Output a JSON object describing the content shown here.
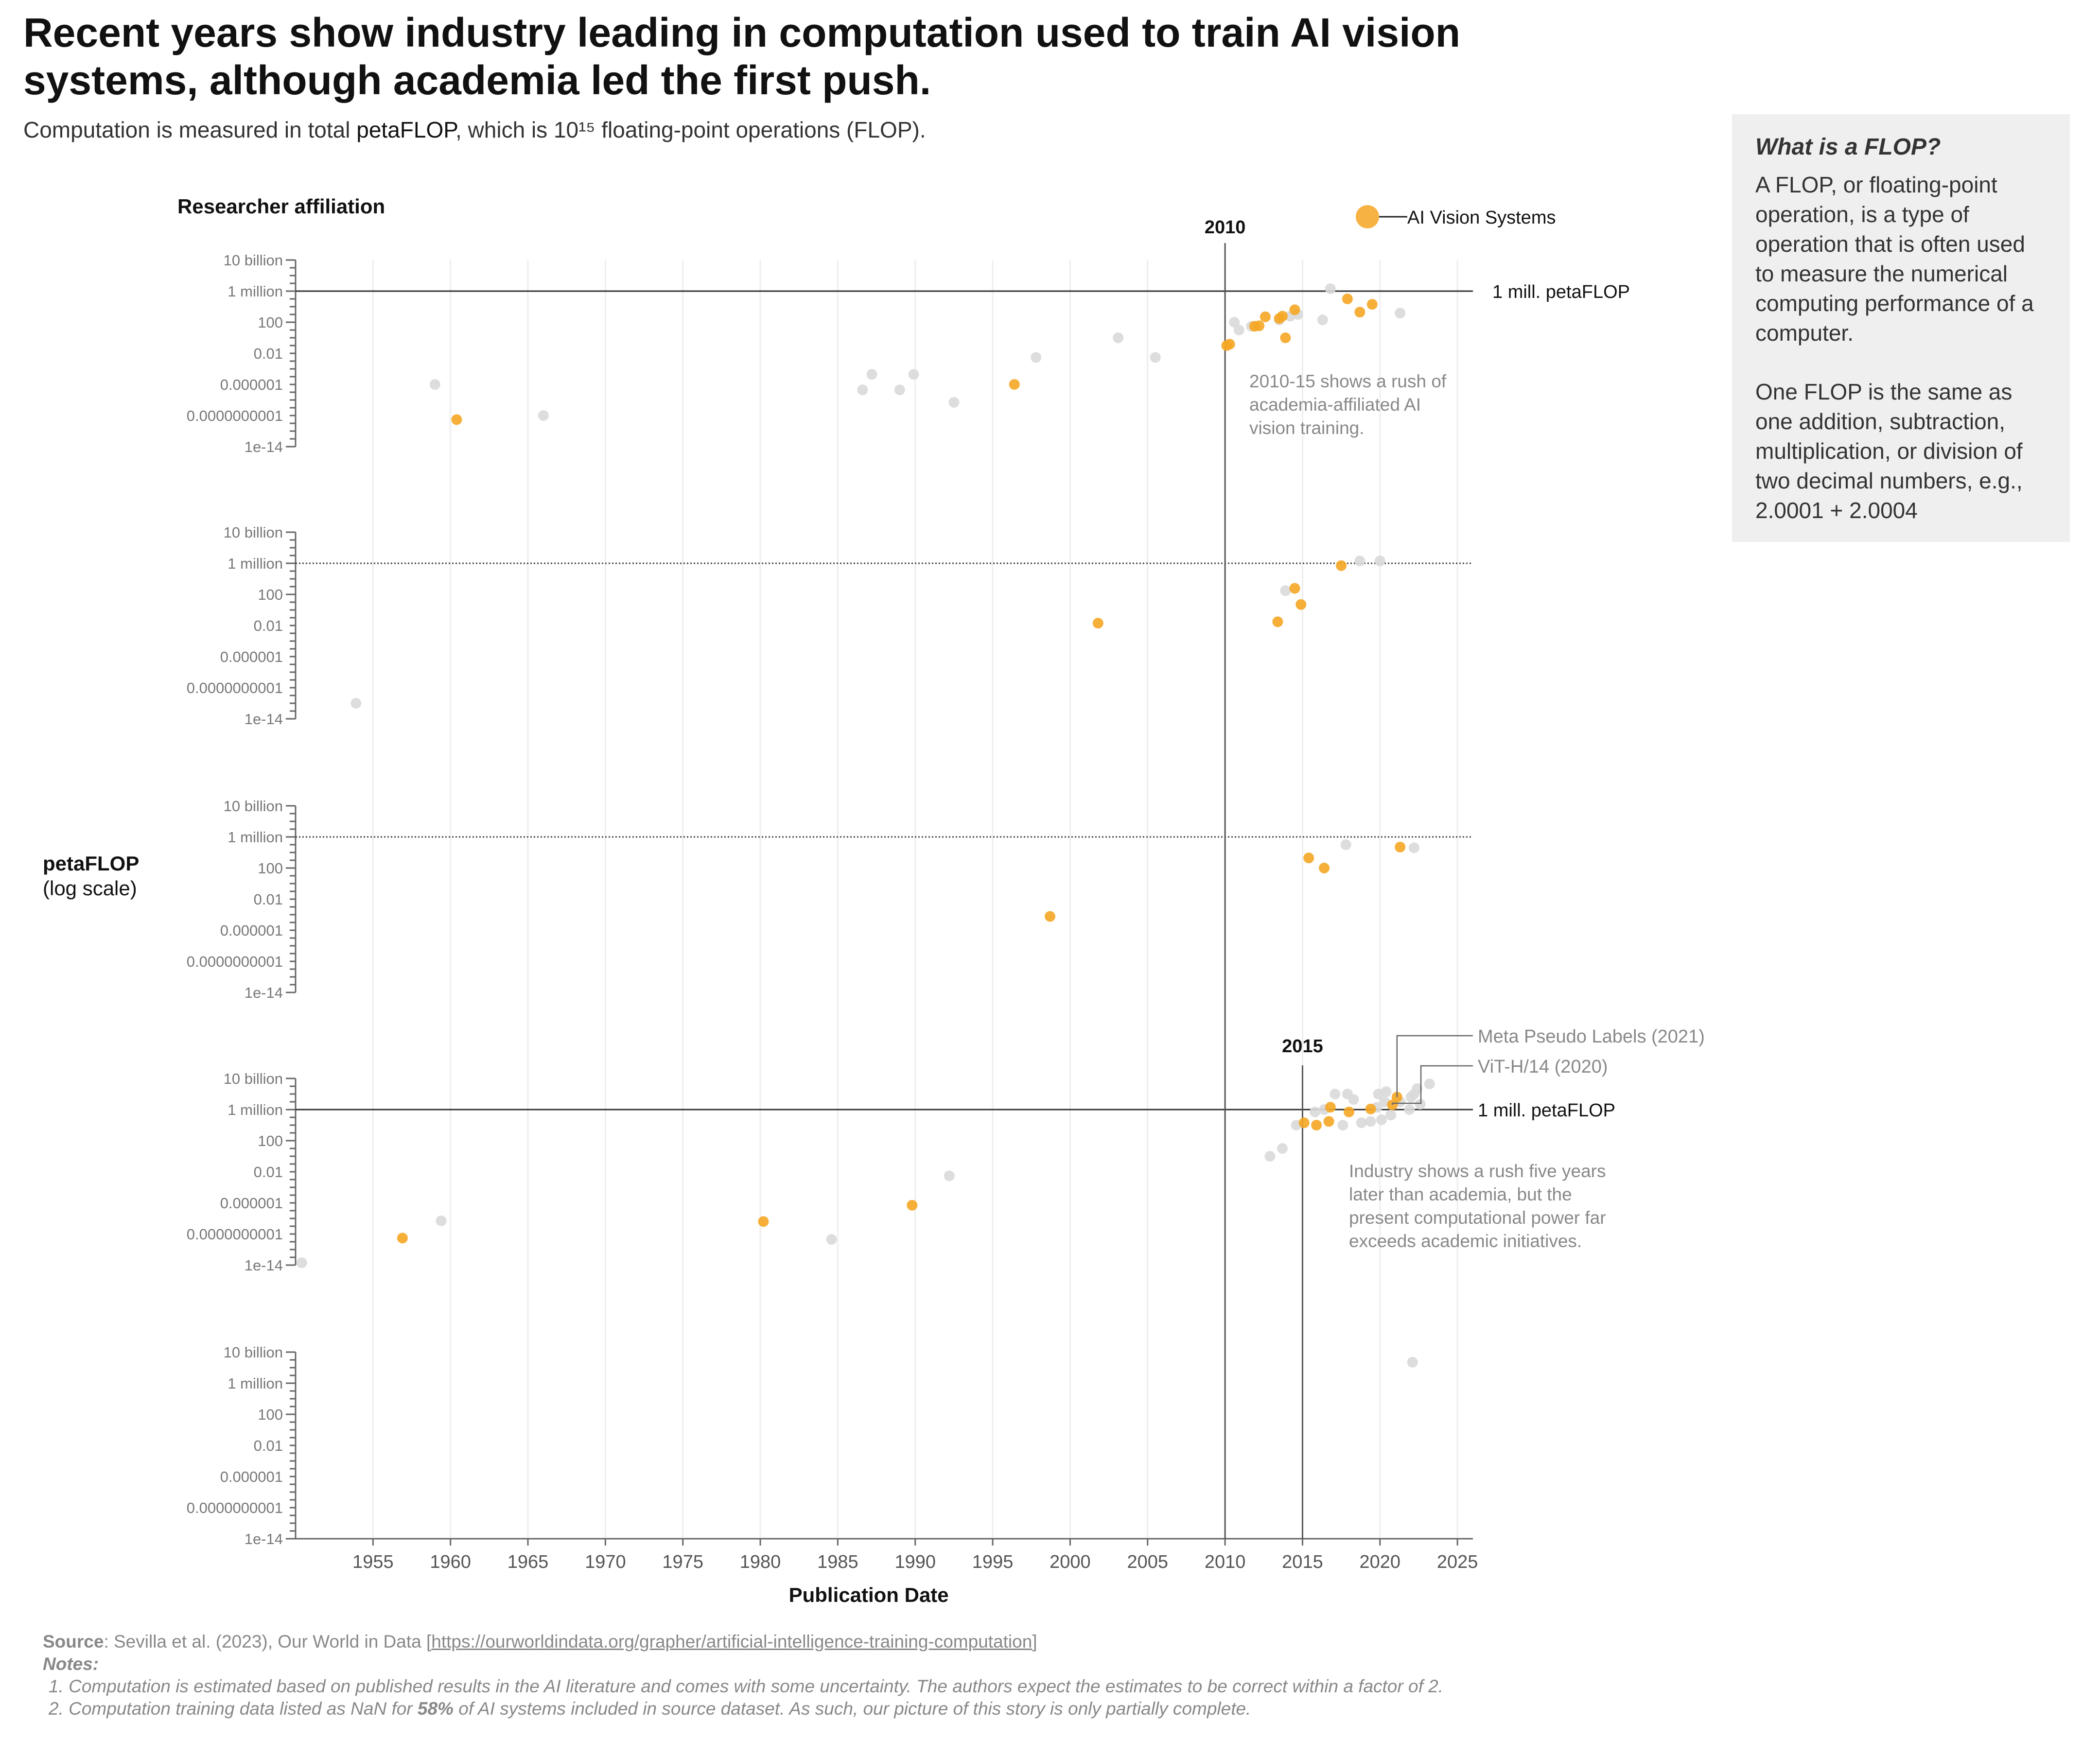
{
  "title": "Recent years show industry leading in computation used to train AI vision systems, although academia led the first push.",
  "subtitle": {
    "before": "Computation is measured in total ",
    "emphasis": "petaFLOP",
    "after": ", which is 10¹⁵ floating-point operations (FLOP)."
  },
  "sidebar": {
    "title": "What is a FLOP?",
    "paragraph1": "A FLOP, or floating-point operation, is a type of operation that is often used to measure the numerical computing performance of a computer.",
    "paragraph2": "One FLOP is the same as one addition, subtraction, multiplication, or division of two decimal numbers, e.g., 2.0001 + 2.0004"
  },
  "footer": {
    "source_label": "Source",
    "source_text": ": Sevilla et al. (2023), Our World in Data [",
    "source_link": "https://ourworldindata.org/grapher/artificial-intelligence-training-computation",
    "source_end": "]",
    "notes_label": "Notes:",
    "note1": "1. Computation is estimated based on published results in the AI literature and comes with some uncertainty. The authors expect the estimates to be correct within a factor of 2.",
    "note2_before": "2. Computation training data listed as NaN for ",
    "note2_bold": "58%",
    "note2_after": " of AI systems included in source dataset. As such, our picture of this story is only partially complete."
  },
  "colors": {
    "highlight": "#f5a623",
    "other": "#d9d9d9",
    "axis": "#666666",
    "grid": "#eeeeee",
    "annotation": "#888888"
  },
  "chart_data": {
    "type": "scatter",
    "y_scale": "log",
    "x_range": [
      1950,
      2026
    ],
    "y_range": [
      1e-14,
      10000000000.0
    ],
    "x_ticks": [
      1955,
      1960,
      1965,
      1970,
      1975,
      1980,
      1985,
      1990,
      1995,
      2000,
      2005,
      2010,
      2015,
      2020,
      2025
    ],
    "y_ticks": [
      {
        "value": 10000000000.0,
        "label": "10 billion"
      },
      {
        "value": 1000000.0,
        "label": "1 million"
      },
      {
        "value": 100,
        "label": "100"
      },
      {
        "value": 0.01,
        "label": "0.01"
      },
      {
        "value": 1e-06,
        "label": "0.000001"
      },
      {
        "value": 1e-10,
        "label": "0.0000000001"
      },
      {
        "value": 1e-14,
        "label": "1e-14"
      }
    ],
    "xlabel": "Publication Date",
    "ylabel": "petaFLOP",
    "ylabel_sub": "(log scale)",
    "facet_label": "Researcher affiliation",
    "legend": {
      "label": "AI Vision Systems",
      "position": "top-right"
    },
    "reference_lines": [
      {
        "value": 1000000.0,
        "label": "1 mill. petaFLOP"
      }
    ],
    "vertical_markers": [
      {
        "year": 2010,
        "label": "2010"
      },
      {
        "year": 2015,
        "label": "2015"
      }
    ],
    "annotations": [
      {
        "text": "2010-15 shows a rush of academia-affiliated AI vision training.",
        "panel": 0
      },
      {
        "text": "Industry shows a rush five years later than academia, but the present computational power far exceeds academic initiatives.",
        "panel": 3
      }
    ],
    "callouts": [
      {
        "label": "Meta Pseudo Labels (2021)",
        "x": 2021.1,
        "y": 40000000.0
      },
      {
        "label": "ViT-H/14 (2020)",
        "x": 2020.8,
        "y": 4000000.0
      }
    ],
    "panels": [
      {
        "vision": [
          [
            1960.4,
            3e-11
          ],
          [
            1996.4,
            1e-06
          ],
          [
            2010.1,
            0.1
          ],
          [
            2010.3,
            0.15
          ],
          [
            2011.9,
            30
          ],
          [
            2012.2,
            35
          ],
          [
            2012.6,
            500
          ],
          [
            2013.5,
            300
          ],
          [
            2013.7,
            600
          ],
          [
            2013.9,
            1
          ],
          [
            2014.5,
            4000
          ],
          [
            2017.9,
            100000
          ],
          [
            2018.7,
            2000
          ],
          [
            2019.5,
            20000
          ]
        ],
        "other": [
          [
            1959.0,
            1e-06
          ],
          [
            1966.0,
            1e-10
          ],
          [
            1986.6,
            2e-07
          ],
          [
            1987.2,
            2e-05
          ],
          [
            1989.0,
            2e-07
          ],
          [
            1989.9,
            2e-05
          ],
          [
            1992.5,
            5e-09
          ],
          [
            1997.8,
            0.003
          ],
          [
            2003.1,
            1
          ],
          [
            2005.5,
            0.003
          ],
          [
            2010.6,
            100
          ],
          [
            2010.9,
            10
          ],
          [
            2011.7,
            30
          ],
          [
            2013.5,
            200
          ],
          [
            2014.2,
            600
          ],
          [
            2014.7,
            1000
          ],
          [
            2016.3,
            200
          ],
          [
            2016.8,
            2000000
          ],
          [
            2021.3,
            1500
          ]
        ]
      },
      {
        "vision": [
          [
            2001.8,
            0.02
          ],
          [
            2013.4,
            0.03
          ],
          [
            2014.5,
            600
          ],
          [
            2014.9,
            5
          ],
          [
            2017.5,
            500000
          ]
        ],
        "other": [
          [
            1953.9,
            1e-12
          ],
          [
            2013.9,
            300
          ],
          [
            2018.7,
            2000000
          ],
          [
            2020.0,
            2000000
          ]
        ]
      },
      {
        "vision": [
          [
            1998.7,
            6e-05
          ],
          [
            2015.4,
            2000
          ],
          [
            2016.4,
            100
          ],
          [
            2021.3,
            50000
          ]
        ],
        "other": [
          [
            2017.8,
            100000
          ],
          [
            2022.2,
            40000
          ]
        ]
      },
      {
        "vision": [
          [
            1956.9,
            3e-11
          ],
          [
            1980.2,
            4e-09
          ],
          [
            1989.8,
            5e-07
          ],
          [
            2015.1,
            20000
          ],
          [
            2015.9,
            10000
          ],
          [
            2016.7,
            30000
          ],
          [
            2016.8,
            2000000
          ],
          [
            2018.0,
            500000
          ],
          [
            2019.4,
            1200000
          ],
          [
            2020.8,
            4000000
          ],
          [
            2021.1,
            40000000
          ]
        ],
        "other": [
          [
            1950.4,
            2e-14
          ],
          [
            1959.4,
            5e-09
          ],
          [
            1984.6,
            2e-11
          ],
          [
            1992.2,
            0.003
          ],
          [
            2012.9,
            1
          ],
          [
            2013.7,
            10
          ],
          [
            2014.6,
            10000
          ],
          [
            2015.8,
            500000
          ],
          [
            2016.4,
            1000000
          ],
          [
            2017.1,
            100000000
          ],
          [
            2017.6,
            10000
          ],
          [
            2017.9,
            100000000
          ],
          [
            2018.3,
            20000000
          ],
          [
            2018.8,
            20000
          ],
          [
            2019.4,
            30000
          ],
          [
            2019.8,
            2000000
          ],
          [
            2019.9,
            100000000
          ],
          [
            2020.1,
            50000
          ],
          [
            2020.3,
            10000000
          ],
          [
            2020.4,
            200000000
          ],
          [
            2020.7,
            200000
          ],
          [
            2021.3,
            10000000
          ],
          [
            2021.9,
            1000000
          ],
          [
            2022.0,
            40000000
          ],
          [
            2022.2,
            100000000
          ],
          [
            2022.4,
            500000000
          ],
          [
            2022.6,
            5000000
          ],
          [
            2023.2,
            2000000000
          ]
        ]
      },
      {
        "vision": [],
        "other": [
          [
            2022.1,
            500000000.0
          ]
        ]
      }
    ]
  }
}
